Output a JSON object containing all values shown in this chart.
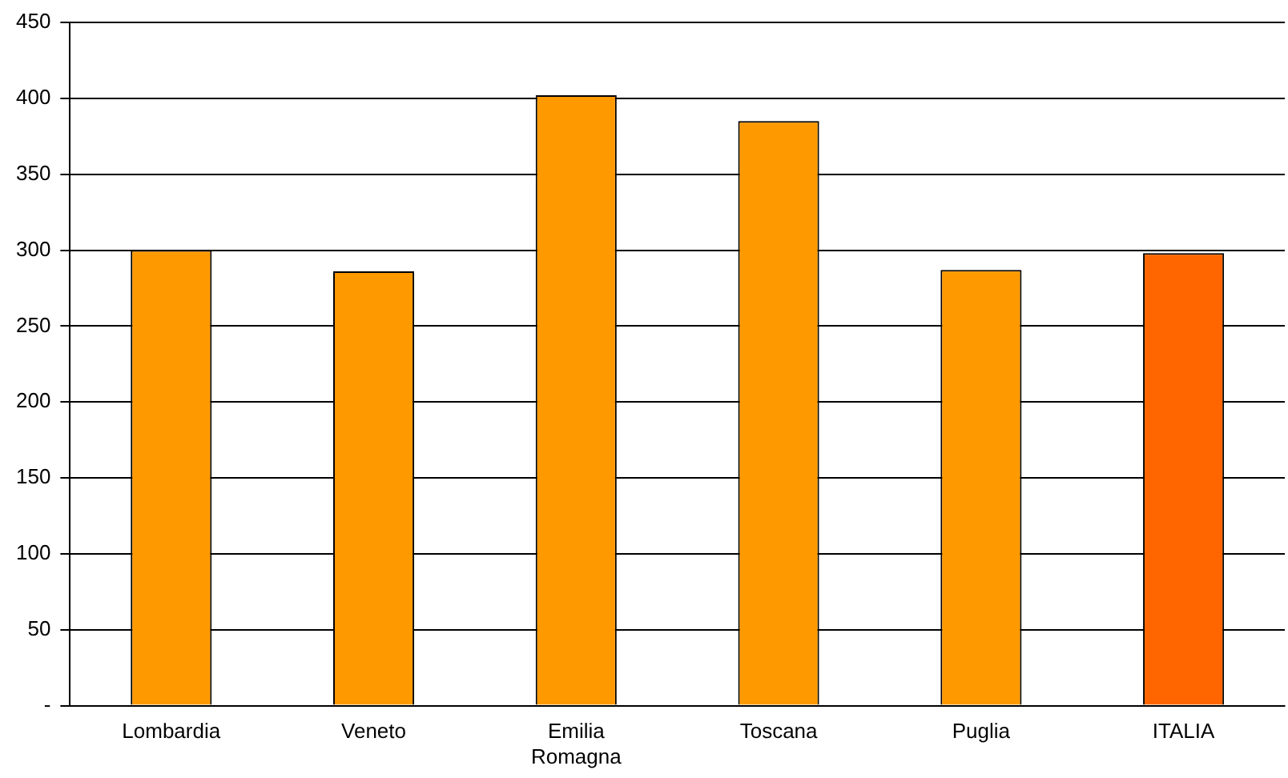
{
  "chart_data": {
    "type": "bar",
    "categories": [
      "Lombardia",
      "Veneto",
      "Emilia Romagna",
      "Toscana",
      "Puglia",
      "ITALIA"
    ],
    "values": [
      300,
      286,
      402,
      385,
      287,
      298
    ],
    "colors": [
      "#ff9900",
      "#ff9900",
      "#ff9900",
      "#ff9900",
      "#ff9900",
      "#ff6600"
    ],
    "ylim": [
      0,
      450
    ],
    "yticks": [
      {
        "value": 0,
        "label": "-"
      },
      50,
      100,
      150,
      200,
      250,
      300,
      350,
      400,
      450
    ],
    "grid": "y",
    "legend": false
  }
}
